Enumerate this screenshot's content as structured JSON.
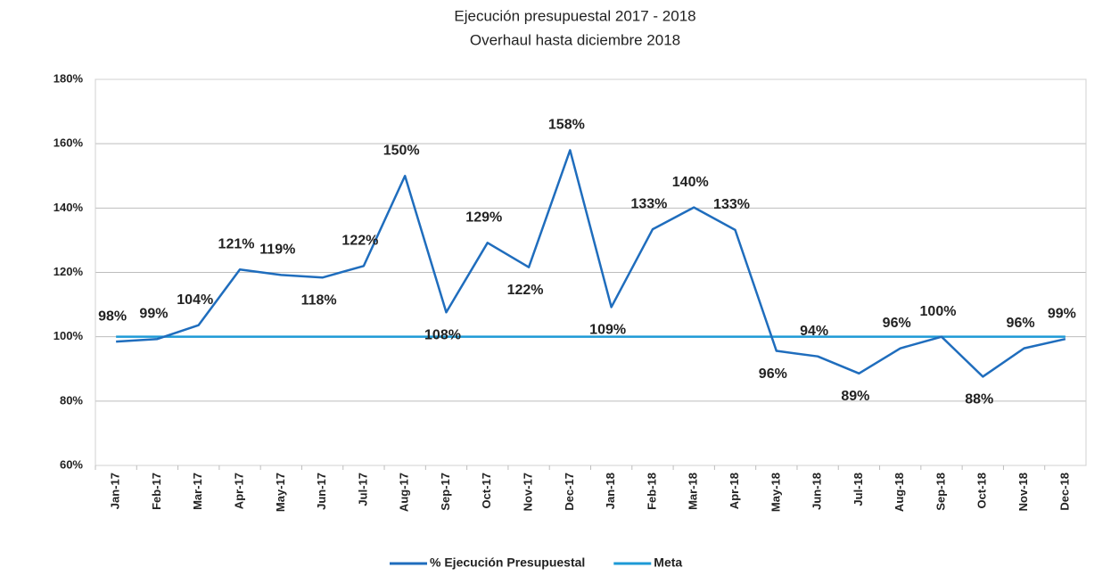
{
  "chart_data": {
    "type": "line",
    "title": "Ejecución presupuestal 2017 - 2018",
    "subtitle": "Overhaul hasta diciembre 2018",
    "categories": [
      "Jan-17",
      "Feb-17",
      "Mar-17",
      "Apr-17",
      "May-17",
      "Jun-17",
      "Jul-17",
      "Aug-17",
      "Sep-17",
      "Oct-17",
      "Nov-17",
      "Dec-17",
      "Jan-18",
      "Feb-18",
      "Mar-18",
      "Apr-18",
      "May-18",
      "Jun-18",
      "Jul-18",
      "Aug-18",
      "Sep-18",
      "Oct-18",
      "Nov-18",
      "Dec-18"
    ],
    "series": [
      {
        "name": "% Ejecución Presupuestal",
        "color": "#1f6dbd",
        "values": [
          98.5,
          99.3,
          103.6,
          120.9,
          119.2,
          118.4,
          122,
          150,
          107.6,
          129.2,
          121.6,
          158,
          109.2,
          133.4,
          140.2,
          133.2,
          95.6,
          93.9,
          88.6,
          96.4,
          100,
          87.6,
          96.4,
          99.3
        ],
        "value_labels": [
          "98%",
          "99%",
          "104%",
          "121%",
          "119%",
          "118%",
          "122%",
          "150%",
          "108%",
          "129%",
          "122%",
          "158%",
          "109%",
          "133%",
          "140%",
          "133%",
          "96%",
          "94%",
          "89%",
          "96%",
          "100%",
          "88%",
          "96%",
          "99%"
        ]
      },
      {
        "name": "Meta",
        "color": "#1d9ad6",
        "values": [
          100,
          100,
          100,
          100,
          100,
          100,
          100,
          100,
          100,
          100,
          100,
          100,
          100,
          100,
          100,
          100,
          100,
          100,
          100,
          100,
          100,
          100,
          100,
          100
        ]
      }
    ],
    "ylim": [
      60,
      180
    ],
    "yticks": [
      {
        "value": 60,
        "label": "60%"
      },
      {
        "value": 80,
        "label": "80%"
      },
      {
        "value": 100,
        "label": "100%"
      },
      {
        "value": 120,
        "label": "120%"
      },
      {
        "value": 140,
        "label": "140%"
      },
      {
        "value": 160,
        "label": "160%"
      },
      {
        "value": 180,
        "label": "180%"
      }
    ],
    "grid": true,
    "legend": "bottom"
  }
}
